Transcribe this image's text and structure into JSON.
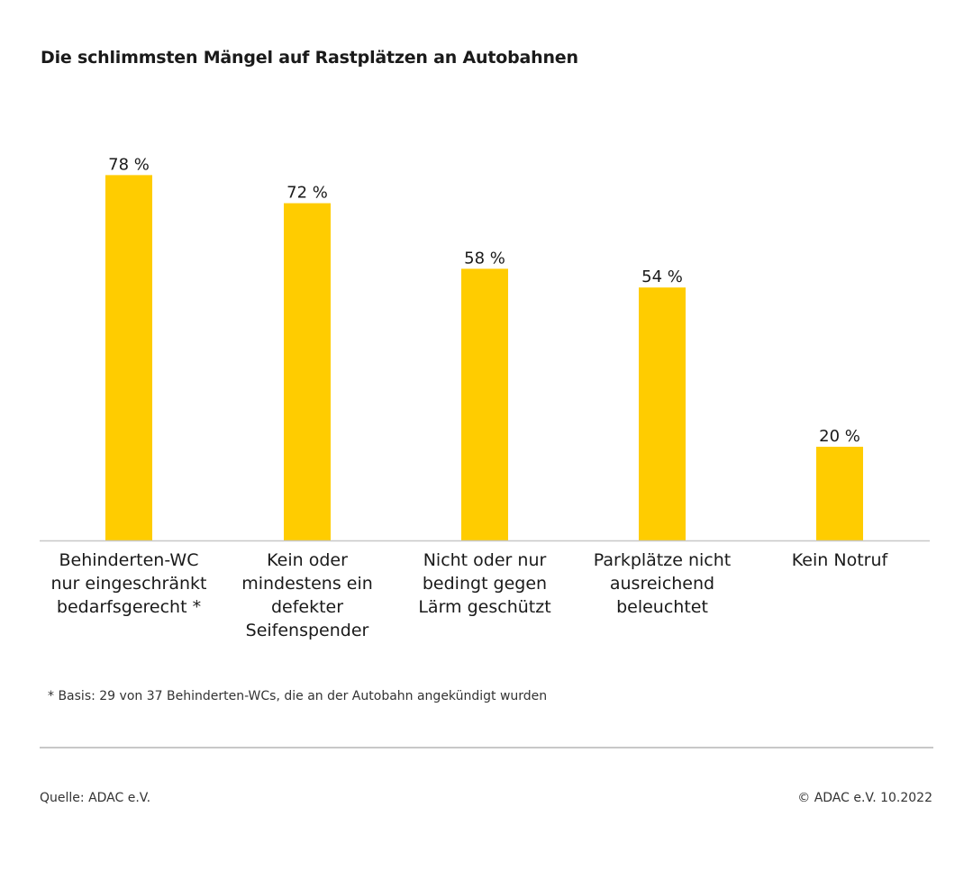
{
  "chart_data": {
    "type": "bar",
    "title": "Die schlimmsten Mängel auf Rastplätzen an Autobahnen",
    "categories": [
      [
        "Behinderten-WC",
        "nur eingeschränkt",
        "bedarfsgerecht *"
      ],
      [
        "Kein oder",
        "mindestens ein",
        "defekter",
        "Seifenspender"
      ],
      [
        "Nicht oder nur",
        "bedingt gegen",
        "Lärm geschützt"
      ],
      [
        "Parkplätze nicht",
        "ausreichend",
        "beleuchtet"
      ],
      [
        "Kein Notruf"
      ]
    ],
    "values": [
      78,
      72,
      58,
      54,
      20
    ],
    "value_labels": [
      "78 %",
      "72 %",
      "58 %",
      "54 %",
      "20 %"
    ],
    "unit": "%",
    "ylim": [
      0,
      100
    ],
    "grid": false,
    "bar_color": "#FFCC00",
    "axis_color": "#C8C8C8"
  },
  "footnote": "* Basis: 29 von 37 Behinderten-WCs, die an der Autobahn angekündigt wurden",
  "source": "Quelle: ADAC e.V.",
  "copyright": "© ADAC e.V. 10.2022"
}
